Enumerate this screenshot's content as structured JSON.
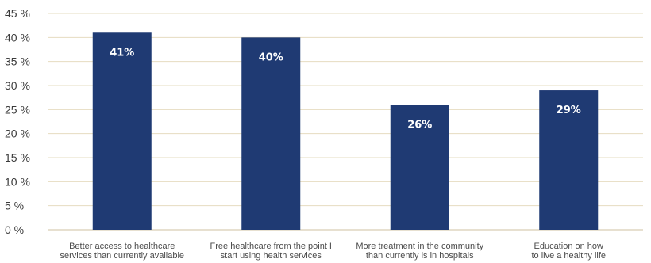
{
  "chart_data": {
    "type": "bar",
    "title": "",
    "xlabel": "",
    "ylabel": "",
    "ylim": [
      0,
      45
    ],
    "yticks": [
      "0 %",
      "5 %",
      "10 %",
      "15 %",
      "20 %",
      "25 %",
      "30 %",
      "35 %",
      "40 %",
      "45 %"
    ],
    "ytick_values": [
      0,
      5,
      10,
      15,
      20,
      25,
      30,
      35,
      40,
      45
    ],
    "grid": true,
    "categories": [
      [
        "Better access to healthcare",
        "services than currently available"
      ],
      [
        "Free healthcare from the point I",
        "start using health services"
      ],
      [
        "More treatment in the community",
        "than currently is in hospitals"
      ],
      [
        "Education on how",
        "to live a healthy life"
      ]
    ],
    "values": [
      41,
      40,
      26,
      29
    ],
    "data_labels": [
      "41%",
      "40%",
      "26%",
      "29%"
    ],
    "colors": {
      "bar": "#1f3a73",
      "grid": "#e6dcc0",
      "baseline": "#cfc2a0"
    }
  }
}
